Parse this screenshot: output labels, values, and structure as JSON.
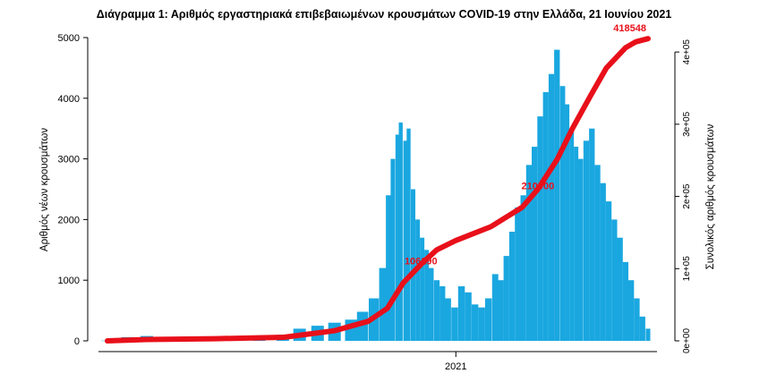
{
  "chart_data": {
    "type": "bar",
    "title": "Διάγραμμα 1: Αριθμός εργαστηριακά επιβεβαιωμένων κρουσμάτων COVID-19 στην Ελλάδα, 21 Ιουνίου 2021",
    "ylabel": "Αριθμός νέων κρουσμάτων",
    "y2label": "Συνολικός αριθμός κρουσμάτων",
    "ylim": [
      0,
      5000
    ],
    "y2lim": [
      0,
      420000
    ],
    "yticks": [
      "0",
      "1000",
      "2000",
      "3000",
      "4000",
      "5000"
    ],
    "y2ticks": [
      "0e+00",
      "1e+05",
      "2e+05",
      "3e+05",
      "4e+05"
    ],
    "xticks": [
      "2021"
    ],
    "x_start": "2020-02-26",
    "x_end": "2021-06-21",
    "bar_color": "#1aa7e0",
    "line_color": "#e8101a",
    "series": [
      {
        "kind": "bars",
        "x": [
          "2020-02-26",
          "2020-03-15",
          "2020-04-01",
          "2020-04-20",
          "2020-05-10",
          "2020-06-01",
          "2020-06-20",
          "2020-07-10",
          "2020-07-31",
          "2020-08-15",
          "2020-08-31",
          "2020-09-15",
          "2020-09-30",
          "2020-10-10",
          "2020-10-20",
          "2020-10-28",
          "2020-11-02",
          "2020-11-06",
          "2020-11-10",
          "2020-11-13",
          "2020-11-17",
          "2020-11-20",
          "2020-11-24",
          "2020-11-28",
          "2020-12-02",
          "2020-12-06",
          "2020-12-10",
          "2020-12-15",
          "2020-12-20",
          "2020-12-25",
          "2020-12-31",
          "2021-01-06",
          "2021-01-12",
          "2021-01-18",
          "2021-01-24",
          "2021-01-30",
          "2021-02-05",
          "2021-02-10",
          "2021-02-15",
          "2021-02-20",
          "2021-02-25",
          "2021-03-02",
          "2021-03-07",
          "2021-03-12",
          "2021-03-17",
          "2021-03-22",
          "2021-03-27",
          "2021-04-01",
          "2021-04-06",
          "2021-04-10",
          "2021-04-14",
          "2021-04-18",
          "2021-04-22",
          "2021-04-27",
          "2021-05-02",
          "2021-05-07",
          "2021-05-12",
          "2021-05-17",
          "2021-05-22",
          "2021-05-27",
          "2021-06-01",
          "2021-06-06",
          "2021-06-11",
          "2021-06-16",
          "2021-06-21"
        ],
        "y": [
          5,
          60,
          80,
          20,
          15,
          10,
          20,
          60,
          100,
          200,
          250,
          300,
          350,
          480,
          700,
          1200,
          2400,
          3000,
          3400,
          3600,
          3300,
          3500,
          2500,
          2000,
          1700,
          1500,
          1200,
          1000,
          900,
          700,
          550,
          900,
          800,
          600,
          550,
          700,
          1100,
          1000,
          1400,
          1800,
          2200,
          2400,
          2900,
          3200,
          3700,
          4100,
          4400,
          4800,
          4200,
          3900,
          3500,
          3200,
          3000,
          3300,
          3500,
          2900,
          2600,
          2300,
          2000,
          1700,
          1300,
          1000,
          700,
          400,
          200
        ]
      },
      {
        "kind": "cumulative_line",
        "x": [
          "2020-02-26",
          "2020-04-01",
          "2020-06-01",
          "2020-08-01",
          "2020-09-15",
          "2020-10-15",
          "2020-11-01",
          "2020-11-15",
          "2020-12-01",
          "2020-12-15",
          "2021-01-01",
          "2021-02-01",
          "2021-03-01",
          "2021-03-15",
          "2021-04-01",
          "2021-04-15",
          "2021-05-01",
          "2021-05-15",
          "2021-06-01",
          "2021-06-10",
          "2021-06-21"
        ],
        "y": [
          0,
          1800,
          3000,
          5000,
          14000,
          27000,
          45000,
          80000,
          106000,
          126000,
          139000,
          158000,
          185000,
          210000,
          251000,
          295000,
          340000,
          378000,
          406000,
          414000,
          418548
        ]
      }
    ],
    "annotations": [
      {
        "text": "106190",
        "x": "2020-12-01",
        "y2": 106190
      },
      {
        "text": "210000",
        "x": "2021-03-15",
        "y2": 210000
      },
      {
        "text": "418548",
        "x": "2021-06-21",
        "y2": 418548
      }
    ]
  }
}
